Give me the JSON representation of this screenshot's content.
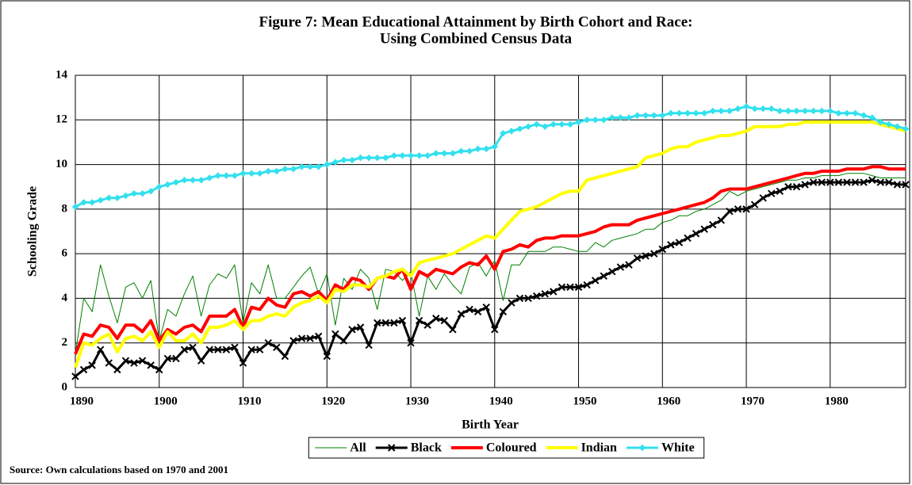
{
  "chart_data": {
    "type": "line",
    "title": [
      "Figure 7: Mean Educational Attainment by Birth Cohort and Race:",
      "Using Combined Census Data"
    ],
    "x_label": "Birth Year",
    "y_label": "Schooling Grade",
    "source": "Source: Own calculations based on 1970 and 2001",
    "x": [
      1890,
      1891,
      1892,
      1893,
      1894,
      1895,
      1896,
      1897,
      1898,
      1899,
      1900,
      1901,
      1902,
      1903,
      1904,
      1905,
      1906,
      1907,
      1908,
      1909,
      1910,
      1911,
      1912,
      1913,
      1914,
      1915,
      1916,
      1917,
      1918,
      1919,
      1920,
      1921,
      1922,
      1923,
      1924,
      1925,
      1926,
      1927,
      1928,
      1929,
      1930,
      1931,
      1932,
      1933,
      1934,
      1935,
      1936,
      1937,
      1938,
      1939,
      1940,
      1941,
      1942,
      1943,
      1944,
      1945,
      1946,
      1947,
      1948,
      1949,
      1950,
      1951,
      1952,
      1953,
      1954,
      1955,
      1956,
      1957,
      1958,
      1959,
      1960,
      1961,
      1962,
      1963,
      1964,
      1965,
      1966,
      1967,
      1968,
      1969,
      1970,
      1971,
      1972,
      1973,
      1974,
      1975,
      1976,
      1977,
      1978,
      1979,
      1980,
      1981,
      1982,
      1983,
      1984,
      1985,
      1986,
      1987,
      1988,
      1989
    ],
    "xlim": [
      1890,
      1989
    ],
    "xticks": [
      1890,
      1900,
      1910,
      1920,
      1930,
      1940,
      1950,
      1960,
      1970,
      1980
    ],
    "ylim": [
      0,
      14
    ],
    "yticks": [
      0,
      2,
      4,
      6,
      8,
      10,
      12,
      14
    ],
    "grid": true,
    "series": [
      {
        "name": "All",
        "color": "#008000",
        "width": 1,
        "values": [
          1.5,
          4.0,
          3.4,
          5.5,
          4.1,
          2.9,
          4.5,
          4.7,
          4.0,
          4.8,
          2.1,
          3.5,
          3.2,
          4.2,
          5.0,
          3.2,
          4.6,
          5.1,
          4.9,
          5.5,
          2.9,
          4.7,
          4.2,
          5.5,
          4.0,
          4.0,
          4.5,
          5.0,
          5.4,
          4.2,
          5.1,
          2.8,
          4.9,
          4.4,
          5.3,
          4.9,
          3.5,
          5.3,
          5.2,
          4.8,
          5.2,
          3.2,
          5.0,
          4.4,
          5.1,
          4.6,
          4.2,
          5.4,
          5.6,
          5.0,
          5.7,
          3.9,
          5.5,
          5.5,
          6.1,
          6.1,
          6.1,
          6.3,
          6.3,
          6.2,
          6.1,
          6.1,
          6.5,
          6.3,
          6.6,
          6.7,
          6.8,
          6.9,
          7.1,
          7.1,
          7.4,
          7.5,
          7.7,
          7.7,
          7.9,
          8.0,
          8.2,
          8.4,
          8.8,
          8.6,
          8.8,
          8.9,
          9.0,
          9.1,
          9.2,
          9.3,
          9.3,
          9.4,
          9.4,
          9.5,
          9.5,
          9.5,
          9.6,
          9.6,
          9.6,
          9.5,
          9.4,
          9.4,
          9.4,
          9.4
        ]
      },
      {
        "name": "Black",
        "color": "#000000",
        "width": 3,
        "marker": "x",
        "values": [
          0.5,
          0.8,
          1.0,
          1.7,
          1.1,
          0.8,
          1.2,
          1.1,
          1.2,
          1.0,
          0.8,
          1.3,
          1.3,
          1.7,
          1.8,
          1.2,
          1.7,
          1.7,
          1.7,
          1.8,
          1.1,
          1.7,
          1.7,
          2.0,
          1.8,
          1.4,
          2.1,
          2.2,
          2.2,
          2.3,
          1.4,
          2.4,
          2.1,
          2.6,
          2.7,
          1.9,
          2.9,
          2.9,
          2.9,
          3.0,
          2.0,
          3.0,
          2.8,
          3.1,
          3.0,
          2.6,
          3.3,
          3.5,
          3.4,
          3.6,
          2.6,
          3.4,
          3.8,
          4.0,
          4.0,
          4.1,
          4.2,
          4.3,
          4.5,
          4.5,
          4.5,
          4.6,
          4.8,
          5.0,
          5.2,
          5.4,
          5.5,
          5.8,
          5.9,
          6.0,
          6.2,
          6.4,
          6.5,
          6.7,
          6.9,
          7.1,
          7.3,
          7.5,
          7.9,
          8.0,
          8.0,
          8.2,
          8.5,
          8.7,
          8.8,
          9.0,
          9.0,
          9.1,
          9.2,
          9.2,
          9.2,
          9.2,
          9.2,
          9.2,
          9.2,
          9.3,
          9.2,
          9.2,
          9.1,
          9.1
        ]
      },
      {
        "name": "Coloured",
        "color": "#ff0000",
        "width": 4,
        "values": [
          1.5,
          2.4,
          2.3,
          2.8,
          2.7,
          2.2,
          2.8,
          2.8,
          2.5,
          3.0,
          2.1,
          2.6,
          2.4,
          2.7,
          2.8,
          2.5,
          3.2,
          3.2,
          3.2,
          3.5,
          2.7,
          3.6,
          3.5,
          4.0,
          3.7,
          3.6,
          4.2,
          4.3,
          4.1,
          4.3,
          3.9,
          4.6,
          4.4,
          4.9,
          4.8,
          4.4,
          4.9,
          5.0,
          4.9,
          5.3,
          4.4,
          5.2,
          5.0,
          5.3,
          5.2,
          5.1,
          5.4,
          5.6,
          5.5,
          5.9,
          5.3,
          6.1,
          6.2,
          6.4,
          6.3,
          6.6,
          6.7,
          6.7,
          6.8,
          6.8,
          6.8,
          6.9,
          7.0,
          7.2,
          7.3,
          7.3,
          7.3,
          7.5,
          7.6,
          7.7,
          7.8,
          7.9,
          8.0,
          8.1,
          8.2,
          8.3,
          8.5,
          8.8,
          8.9,
          8.9,
          8.9,
          9.0,
          9.1,
          9.2,
          9.3,
          9.4,
          9.5,
          9.6,
          9.6,
          9.7,
          9.7,
          9.7,
          9.8,
          9.8,
          9.8,
          9.9,
          9.9,
          9.8,
          9.8,
          9.8
        ]
      },
      {
        "name": "Indian",
        "color": "#ffff00",
        "width": 4,
        "values": [
          0.9,
          2.0,
          1.9,
          2.2,
          2.4,
          1.6,
          2.2,
          2.3,
          2.1,
          2.5,
          1.8,
          2.5,
          2.1,
          2.1,
          2.4,
          2.0,
          2.7,
          2.7,
          2.8,
          3.0,
          2.6,
          3.0,
          3.0,
          3.2,
          3.3,
          3.2,
          3.6,
          3.8,
          3.9,
          4.1,
          3.8,
          4.4,
          4.3,
          4.6,
          4.6,
          4.5,
          4.9,
          5.0,
          5.2,
          5.3,
          5.0,
          5.6,
          5.7,
          5.8,
          5.9,
          6.0,
          6.2,
          6.4,
          6.6,
          6.8,
          6.7,
          7.1,
          7.5,
          7.9,
          8.0,
          8.1,
          8.3,
          8.5,
          8.7,
          8.8,
          8.8,
          9.3,
          9.4,
          9.5,
          9.6,
          9.7,
          9.8,
          9.9,
          10.3,
          10.4,
          10.5,
          10.7,
          10.8,
          10.8,
          11.0,
          11.1,
          11.2,
          11.3,
          11.3,
          11.4,
          11.5,
          11.7,
          11.7,
          11.7,
          11.7,
          11.8,
          11.8,
          11.9,
          11.9,
          11.9,
          11.9,
          11.9,
          11.9,
          11.9,
          11.9,
          11.9,
          11.8,
          11.7,
          11.6,
          11.5
        ]
      },
      {
        "name": "White",
        "color": "#33e0ee",
        "width": 3,
        "marker": "diamond",
        "values": [
          8.1,
          8.3,
          8.3,
          8.4,
          8.5,
          8.5,
          8.6,
          8.7,
          8.7,
          8.8,
          9.0,
          9.1,
          9.2,
          9.3,
          9.3,
          9.3,
          9.4,
          9.5,
          9.5,
          9.5,
          9.6,
          9.6,
          9.6,
          9.7,
          9.7,
          9.8,
          9.8,
          9.9,
          9.9,
          9.9,
          10.0,
          10.1,
          10.2,
          10.2,
          10.3,
          10.3,
          10.3,
          10.3,
          10.4,
          10.4,
          10.4,
          10.4,
          10.4,
          10.5,
          10.5,
          10.5,
          10.6,
          10.6,
          10.7,
          10.7,
          10.8,
          11.4,
          11.5,
          11.6,
          11.7,
          11.8,
          11.7,
          11.8,
          11.8,
          11.8,
          11.9,
          12.0,
          12.0,
          12.0,
          12.1,
          12.1,
          12.1,
          12.2,
          12.2,
          12.2,
          12.2,
          12.3,
          12.3,
          12.3,
          12.3,
          12.3,
          12.4,
          12.4,
          12.4,
          12.5,
          12.6,
          12.5,
          12.5,
          12.5,
          12.4,
          12.4,
          12.4,
          12.4,
          12.4,
          12.4,
          12.4,
          12.3,
          12.3,
          12.3,
          12.2,
          12.1,
          11.9,
          11.8,
          11.7,
          11.6
        ]
      }
    ]
  }
}
